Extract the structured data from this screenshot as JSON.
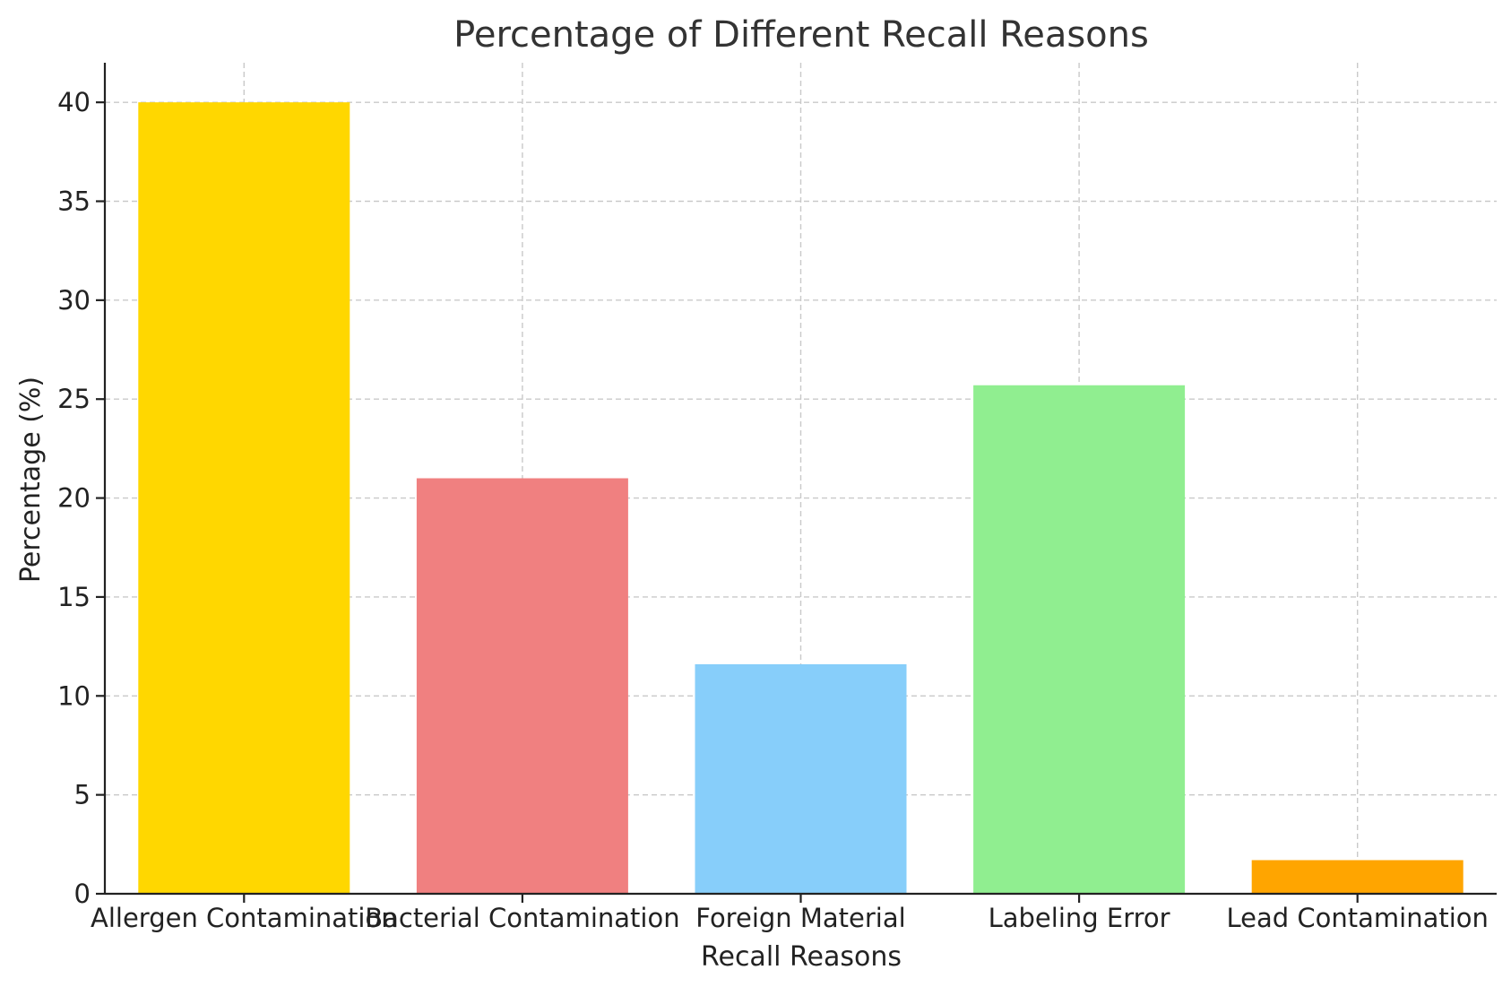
{
  "chart_data": {
    "type": "bar",
    "title": "Percentage of Different Recall Reasons",
    "xlabel": "Recall Reasons",
    "ylabel": "Percentage (%)",
    "categories": [
      "Allergen Contamination",
      "Bacterial Contamination",
      "Foreign Material",
      "Labeling Error",
      "Lead Contamination"
    ],
    "values": [
      40.0,
      21.0,
      11.6,
      25.7,
      1.7
    ],
    "colors": [
      "#ffd700",
      "#f08080",
      "#87cefa",
      "#90ee90",
      "#ffa500"
    ],
    "ylim": [
      0,
      42
    ],
    "yticks": [
      0,
      5,
      10,
      15,
      20,
      25,
      30,
      35,
      40
    ],
    "grid": true,
    "legend": "none"
  }
}
